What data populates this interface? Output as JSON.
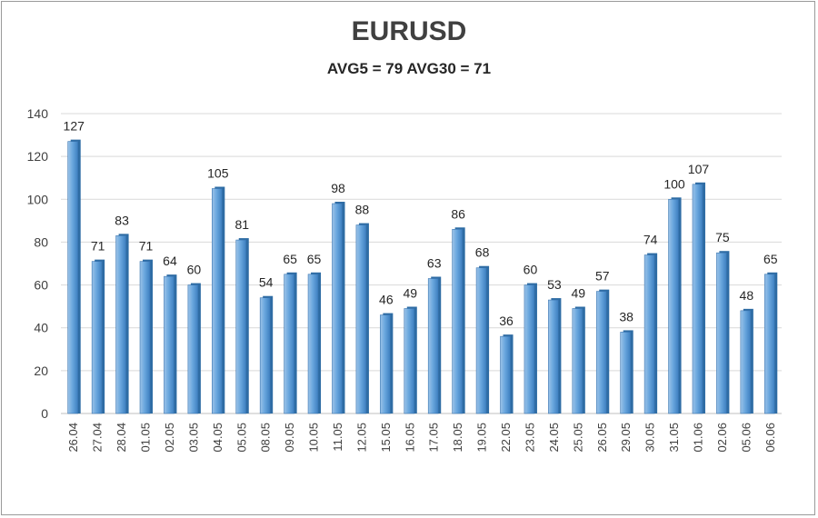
{
  "chart_data": {
    "type": "bar",
    "title": "EURUSD",
    "subtitle": "AVG5 = 79 AVG30 = 71",
    "categories": [
      "26.04",
      "27.04",
      "28.04",
      "01.05",
      "02.05",
      "03.05",
      "04.05",
      "05.05",
      "08.05",
      "09.05",
      "10.05",
      "11.05",
      "12.05",
      "15.05",
      "16.05",
      "17.05",
      "18.05",
      "19.05",
      "22.05",
      "23.05",
      "24.05",
      "25.05",
      "26.05",
      "29.05",
      "30.05",
      "31.05",
      "01.06",
      "02.06",
      "05.06",
      "06.06"
    ],
    "values": [
      127,
      71,
      83,
      71,
      64,
      60,
      105,
      81,
      54,
      65,
      65,
      98,
      88,
      46,
      49,
      63,
      86,
      68,
      36,
      60,
      53,
      49,
      57,
      38,
      74,
      100,
      107,
      75,
      48,
      65
    ],
    "ylim": [
      0,
      140
    ],
    "yticks": [
      0,
      20,
      40,
      60,
      80,
      100,
      120,
      140
    ],
    "grid": true,
    "legend": "none",
    "colors": {
      "bar": "#5b9bd5",
      "bar_dark": "#2e6ca4",
      "bar_light": "#9cc3e8",
      "grid": "#d9d9d9"
    }
  }
}
